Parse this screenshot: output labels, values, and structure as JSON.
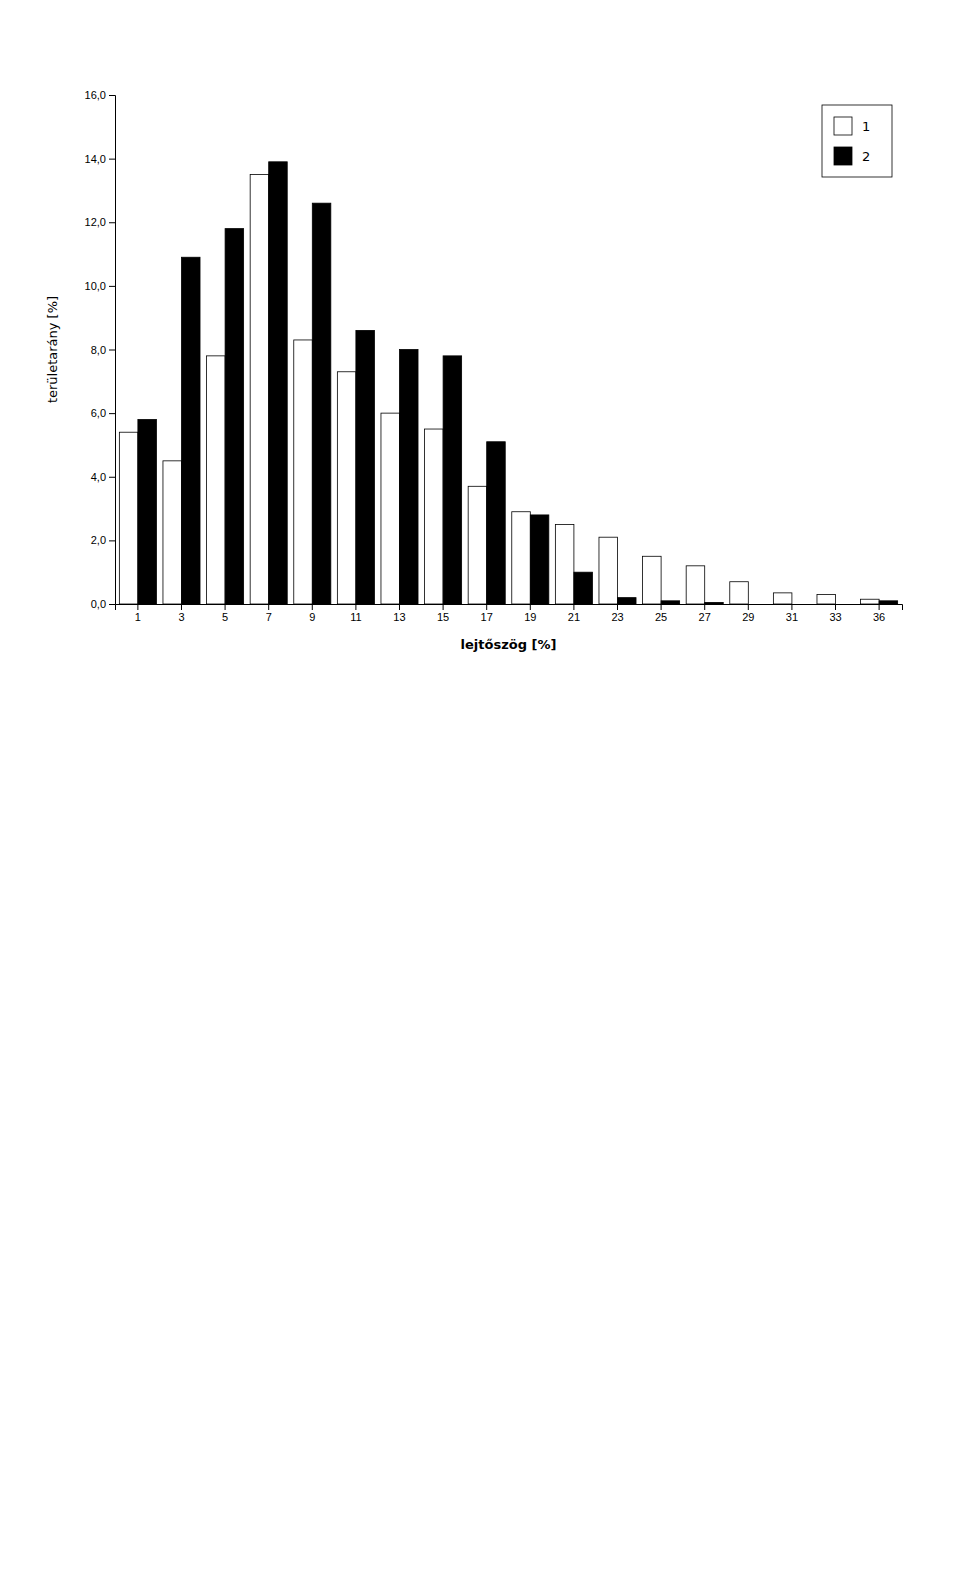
{
  "chart_data": {
    "type": "bar",
    "categories": [
      1,
      3,
      5,
      7,
      9,
      11,
      13,
      15,
      17,
      19,
      21,
      23,
      25,
      27,
      29,
      31,
      33,
      36
    ],
    "series": [
      {
        "name": "1",
        "color": "#ffffff",
        "values": [
          5.4,
          4.5,
          7.8,
          13.5,
          8.3,
          7.3,
          6.0,
          5.5,
          3.7,
          2.9,
          2.5,
          2.1,
          1.5,
          1.2,
          0.7,
          0.35,
          0.3,
          0.15
        ]
      },
      {
        "name": "2",
        "color": "#000000",
        "values": [
          5.8,
          10.9,
          11.8,
          13.9,
          12.6,
          8.6,
          8.0,
          7.8,
          5.1,
          2.8,
          1.0,
          0.2,
          0.1,
          0.05,
          0.0,
          0.0,
          0.0,
          0.1
        ]
      }
    ],
    "xlabel": "lejtőszög [%]",
    "ylabel": "területarány [%]",
    "ylim": [
      0,
      16
    ],
    "yticks": [
      {
        "value": 0,
        "label": "0,0"
      },
      {
        "value": 2,
        "label": "2,0"
      },
      {
        "value": 4,
        "label": "4,0"
      },
      {
        "value": 6,
        "label": "6,0"
      },
      {
        "value": 8,
        "label": "8,0"
      },
      {
        "value": 10,
        "label": "10,0"
      },
      {
        "value": 12,
        "label": "12,0"
      },
      {
        "value": 14,
        "label": "14,0"
      },
      {
        "value": 16,
        "label": "16,0"
      }
    ],
    "grid": false,
    "legend": "upper right"
  }
}
